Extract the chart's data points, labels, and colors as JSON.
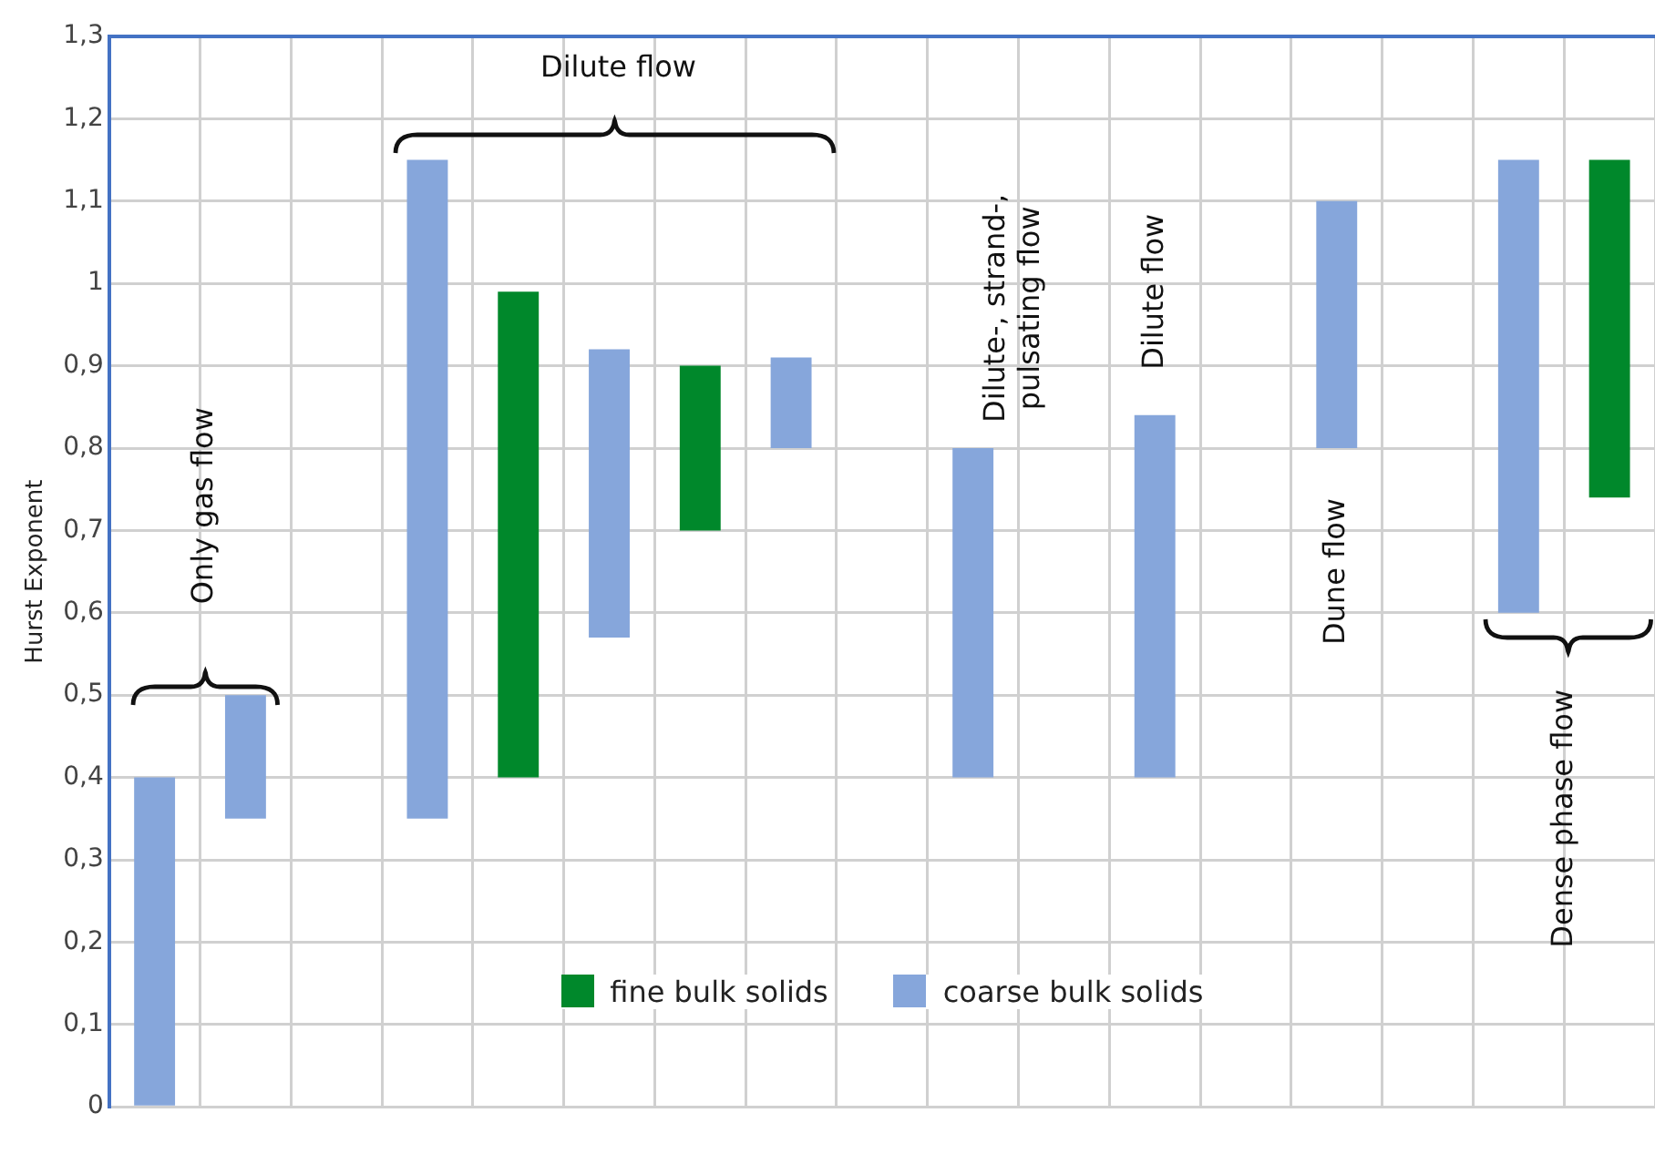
{
  "chart_data": {
    "type": "bar",
    "ylabel": "Hurst Exponent",
    "categories": [
      null,
      null,
      null,
      null,
      null,
      null,
      null,
      null,
      null,
      null,
      null,
      null,
      null,
      null,
      null,
      null,
      null
    ],
    "series": [
      {
        "name": "fine bulk solids",
        "color": "#00882b",
        "base": [
          null,
          null,
          null,
          null,
          0.4,
          null,
          0.7,
          null,
          null,
          null,
          null,
          null,
          null,
          null,
          null,
          null,
          0.74
        ],
        "values": [
          null,
          null,
          null,
          null,
          0.59,
          null,
          0.2,
          null,
          null,
          null,
          null,
          null,
          null,
          null,
          null,
          null,
          0.41
        ]
      },
      {
        "name": "coarse bulk solids",
        "color": "#86a6db",
        "base": [
          0,
          0.35,
          null,
          0.35,
          null,
          0.57,
          null,
          0.8,
          null,
          0.4,
          null,
          0.4,
          null,
          0.8,
          null,
          0.6,
          null
        ],
        "values": [
          0.4,
          0.15,
          null,
          0.8,
          null,
          0.35,
          null,
          0.11,
          null,
          0.4,
          null,
          0.44,
          null,
          0.3,
          null,
          0.55,
          null
        ]
      }
    ],
    "ylim": [
      0,
      1.3
    ],
    "yticks": [
      0,
      {
        "value": 0.1,
        "label": "0,1"
      },
      {
        "value": 0.2,
        "label": "0,2"
      },
      {
        "value": 0.3,
        "label": "0,3"
      },
      {
        "value": 0.4,
        "label": "0,4"
      },
      {
        "value": 0.5,
        "label": "0,5"
      },
      {
        "value": 0.6,
        "label": "0,6"
      },
      {
        "value": 0.7,
        "label": "0,7"
      },
      {
        "value": 0.8,
        "label": "0,8"
      },
      {
        "value": 0.9,
        "label": "0,9"
      },
      1,
      {
        "value": 1.1,
        "label": "1,1"
      },
      {
        "value": 1.2,
        "label": "1,2"
      },
      {
        "value": 1.3,
        "label": "1,3"
      }
    ],
    "grid": true,
    "legend": "bottom",
    "annotations": [
      "Only gas flow",
      "Dilute flow",
      "Dilute-, strand-,\npulsating flow",
      "Dilute flow",
      "Dune flow",
      "Dense phase flow"
    ]
  }
}
